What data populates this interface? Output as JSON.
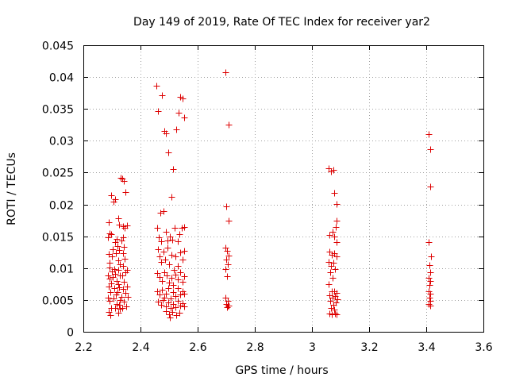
{
  "chart_data": {
    "type": "scatter",
    "title": "Day 149 of 2019, Rate Of TEC Index for receiver yar2",
    "xlabel": "GPS time / hours",
    "ylabel": "ROTI / TECUs",
    "xlim": [
      2.2,
      3.6
    ],
    "ylim": [
      0,
      0.045
    ],
    "grid": true,
    "marker": "+",
    "color": "#dd0000",
    "x_ticks": [
      2.2,
      2.4,
      2.6,
      2.8,
      3.0,
      3.2,
      3.4,
      3.6
    ],
    "x_tick_labels": [
      "2.2",
      "2.4",
      "2.6",
      "2.8",
      "3",
      "3.2",
      "3.4",
      "3.6"
    ],
    "y_ticks": [
      0,
      0.005,
      0.01,
      0.015,
      0.02,
      0.025,
      0.03,
      0.035,
      0.04,
      0.045
    ],
    "y_tick_labels": [
      "0",
      "0.005",
      "0.01",
      "0.015",
      "0.02",
      "0.025",
      "0.03",
      "0.035",
      "0.04",
      "0.045"
    ],
    "series": [
      {
        "name": "ROTI",
        "points": [
          [
            2.286,
            0.0148
          ],
          [
            2.29,
            0.0172
          ],
          [
            2.293,
            0.0155
          ],
          [
            2.296,
            0.0215
          ],
          [
            2.298,
            0.0153
          ],
          [
            2.288,
            0.0122
          ],
          [
            2.292,
            0.0108
          ],
          [
            2.286,
            0.0088
          ],
          [
            2.293,
            0.0083
          ],
          [
            2.289,
            0.0071
          ],
          [
            2.295,
            0.0062
          ],
          [
            2.287,
            0.0053
          ],
          [
            2.292,
            0.0048
          ],
          [
            2.296,
            0.0038
          ],
          [
            2.29,
            0.0031
          ],
          [
            2.294,
            0.0026
          ],
          [
            2.299,
            0.0095
          ],
          [
            2.3,
            0.0118
          ],
          [
            2.291,
            0.0101
          ],
          [
            2.297,
            0.0076
          ],
          [
            2.305,
            0.0205
          ],
          [
            2.312,
            0.0208
          ],
          [
            2.318,
            0.0146
          ],
          [
            2.31,
            0.0141
          ],
          [
            2.303,
            0.013
          ],
          [
            2.315,
            0.0124
          ],
          [
            2.308,
            0.0099
          ],
          [
            2.312,
            0.0091
          ],
          [
            2.304,
            0.0086
          ],
          [
            2.316,
            0.008
          ],
          [
            2.309,
            0.0068
          ],
          [
            2.313,
            0.0058
          ],
          [
            2.306,
            0.0052
          ],
          [
            2.318,
            0.0044
          ],
          [
            2.31,
            0.0038
          ],
          [
            2.322,
            0.0178
          ],
          [
            2.326,
            0.0168
          ],
          [
            2.32,
            0.0135
          ],
          [
            2.325,
            0.0128
          ],
          [
            2.321,
            0.0112
          ],
          [
            2.327,
            0.0106
          ],
          [
            2.323,
            0.0097
          ],
          [
            2.328,
            0.0089
          ],
          [
            2.322,
            0.0075
          ],
          [
            2.326,
            0.007
          ],
          [
            2.32,
            0.0062
          ],
          [
            2.327,
            0.005
          ],
          [
            2.324,
            0.0043
          ],
          [
            2.329,
            0.0036
          ],
          [
            2.321,
            0.003
          ],
          [
            2.33,
            0.0242
          ],
          [
            2.336,
            0.024
          ],
          [
            2.342,
            0.0237
          ],
          [
            2.338,
            0.0166
          ],
          [
            2.344,
            0.0163
          ],
          [
            2.348,
            0.022
          ],
          [
            2.339,
            0.0148
          ],
          [
            2.334,
            0.0143
          ],
          [
            2.343,
            0.0133
          ],
          [
            2.338,
            0.0124
          ],
          [
            2.345,
            0.0115
          ],
          [
            2.34,
            0.0104
          ],
          [
            2.346,
            0.0094
          ],
          [
            2.336,
            0.0088
          ],
          [
            2.342,
            0.0079
          ],
          [
            2.338,
            0.0067
          ],
          [
            2.347,
            0.0061
          ],
          [
            2.333,
            0.0055
          ],
          [
            2.343,
            0.0047
          ],
          [
            2.349,
            0.004
          ],
          [
            2.336,
            0.0037
          ],
          [
            2.352,
            0.0167
          ],
          [
            2.354,
            0.0097
          ],
          [
            2.352,
            0.0071
          ],
          [
            2.355,
            0.0055
          ],
          [
            2.455,
            0.0387
          ],
          [
            2.475,
            0.0371
          ],
          [
            2.462,
            0.0347
          ],
          [
            2.483,
            0.0315
          ],
          [
            2.49,
            0.0312
          ],
          [
            2.497,
            0.0282
          ],
          [
            2.508,
            0.0212
          ],
          [
            2.514,
            0.0255
          ],
          [
            2.525,
            0.0318
          ],
          [
            2.533,
            0.0344
          ],
          [
            2.54,
            0.0369
          ],
          [
            2.548,
            0.0366
          ],
          [
            2.553,
            0.0336
          ],
          [
            2.47,
            0.0187
          ],
          [
            2.481,
            0.019
          ],
          [
            2.458,
            0.0163
          ],
          [
            2.465,
            0.0148
          ],
          [
            2.472,
            0.0142
          ],
          [
            2.488,
            0.0157
          ],
          [
            2.495,
            0.0143
          ],
          [
            2.502,
            0.015
          ],
          [
            2.511,
            0.0145
          ],
          [
            2.519,
            0.0163
          ],
          [
            2.53,
            0.0142
          ],
          [
            2.537,
            0.0153
          ],
          [
            2.545,
            0.0163
          ],
          [
            2.553,
            0.0165
          ],
          [
            2.46,
            0.013
          ],
          [
            2.466,
            0.0118
          ],
          [
            2.473,
            0.011
          ],
          [
            2.48,
            0.0126
          ],
          [
            2.487,
            0.0113
          ],
          [
            2.494,
            0.0132
          ],
          [
            2.501,
            0.0106
          ],
          [
            2.508,
            0.0121
          ],
          [
            2.516,
            0.0097
          ],
          [
            2.523,
            0.0118
          ],
          [
            2.531,
            0.0104
          ],
          [
            2.538,
            0.0125
          ],
          [
            2.546,
            0.0113
          ],
          [
            2.553,
            0.0127
          ],
          [
            2.459,
            0.0092
          ],
          [
            2.467,
            0.0086
          ],
          [
            2.475,
            0.008
          ],
          [
            2.483,
            0.0093
          ],
          [
            2.491,
            0.0088
          ],
          [
            2.499,
            0.0077
          ],
          [
            2.507,
            0.0085
          ],
          [
            2.515,
            0.0073
          ],
          [
            2.523,
            0.009
          ],
          [
            2.531,
            0.0082
          ],
          [
            2.539,
            0.0093
          ],
          [
            2.547,
            0.0079
          ],
          [
            2.554,
            0.0087
          ],
          [
            2.458,
            0.0063
          ],
          [
            2.466,
            0.0058
          ],
          [
            2.474,
            0.0066
          ],
          [
            2.482,
            0.0054
          ],
          [
            2.49,
            0.006
          ],
          [
            2.498,
            0.0068
          ],
          [
            2.506,
            0.0052
          ],
          [
            2.514,
            0.0062
          ],
          [
            2.522,
            0.0056
          ],
          [
            2.53,
            0.0069
          ],
          [
            2.538,
            0.0058
          ],
          [
            2.546,
            0.0064
          ],
          [
            2.554,
            0.006
          ],
          [
            2.462,
            0.0047
          ],
          [
            2.471,
            0.0043
          ],
          [
            2.479,
            0.005
          ],
          [
            2.488,
            0.004
          ],
          [
            2.496,
            0.0046
          ],
          [
            2.505,
            0.0037
          ],
          [
            2.513,
            0.0044
          ],
          [
            2.522,
            0.0039
          ],
          [
            2.53,
            0.0048
          ],
          [
            2.538,
            0.0041
          ],
          [
            2.547,
            0.0045
          ],
          [
            2.554,
            0.004
          ],
          [
            2.49,
            0.0033
          ],
          [
            2.5,
            0.0028
          ],
          [
            2.512,
            0.0031
          ],
          [
            2.525,
            0.0026
          ],
          [
            2.535,
            0.003
          ],
          [
            2.504,
            0.0022
          ],
          [
            2.697,
            0.0407
          ],
          [
            2.707,
            0.0325
          ],
          [
            2.7,
            0.0197
          ],
          [
            2.707,
            0.0175
          ],
          [
            2.697,
            0.0132
          ],
          [
            2.703,
            0.0127
          ],
          [
            2.709,
            0.012
          ],
          [
            2.699,
            0.0113
          ],
          [
            2.705,
            0.0106
          ],
          [
            2.698,
            0.0098
          ],
          [
            2.703,
            0.0087
          ],
          [
            2.697,
            0.0054
          ],
          [
            2.705,
            0.0049
          ],
          [
            2.699,
            0.0044
          ],
          [
            2.706,
            0.0041
          ],
          [
            2.702,
            0.0039
          ],
          [
            2.708,
            0.0041
          ],
          [
            3.058,
            0.0257
          ],
          [
            3.068,
            0.0252
          ],
          [
            3.075,
            0.0254
          ],
          [
            3.079,
            0.0218
          ],
          [
            3.086,
            0.0201
          ],
          [
            3.087,
            0.0174
          ],
          [
            3.083,
            0.0165
          ],
          [
            3.06,
            0.0152
          ],
          [
            3.071,
            0.0157
          ],
          [
            3.077,
            0.0149
          ],
          [
            3.085,
            0.0141
          ],
          [
            3.062,
            0.0126
          ],
          [
            3.069,
            0.0121
          ],
          [
            3.078,
            0.0123
          ],
          [
            3.086,
            0.0118
          ],
          [
            3.059,
            0.011
          ],
          [
            3.066,
            0.0103
          ],
          [
            3.074,
            0.0108
          ],
          [
            3.081,
            0.0099
          ],
          [
            3.064,
            0.0093
          ],
          [
            3.071,
            0.0085
          ],
          [
            3.057,
            0.0075
          ],
          [
            3.069,
            0.0064
          ],
          [
            3.078,
            0.0063
          ],
          [
            3.086,
            0.0061
          ],
          [
            3.062,
            0.0057
          ],
          [
            3.071,
            0.0053
          ],
          [
            3.08,
            0.0056
          ],
          [
            3.088,
            0.0051
          ],
          [
            3.063,
            0.0048
          ],
          [
            3.074,
            0.0043
          ],
          [
            3.082,
            0.0046
          ],
          [
            3.066,
            0.0038
          ],
          [
            3.077,
            0.0035
          ],
          [
            3.06,
            0.0029
          ],
          [
            3.07,
            0.0028
          ],
          [
            3.08,
            0.0029
          ],
          [
            3.087,
            0.0028
          ],
          [
            3.407,
            0.0311
          ],
          [
            3.414,
            0.0287
          ],
          [
            3.414,
            0.0228
          ],
          [
            3.409,
            0.0141
          ],
          [
            3.416,
            0.0118
          ],
          [
            3.41,
            0.0105
          ],
          [
            3.413,
            0.0093
          ],
          [
            3.408,
            0.0085
          ],
          [
            3.415,
            0.008
          ],
          [
            3.411,
            0.0073
          ],
          [
            3.408,
            0.0064
          ],
          [
            3.414,
            0.006
          ],
          [
            3.41,
            0.0053
          ],
          [
            3.415,
            0.0049
          ],
          [
            3.409,
            0.0044
          ],
          [
            3.413,
            0.0041
          ]
        ]
      }
    ]
  }
}
